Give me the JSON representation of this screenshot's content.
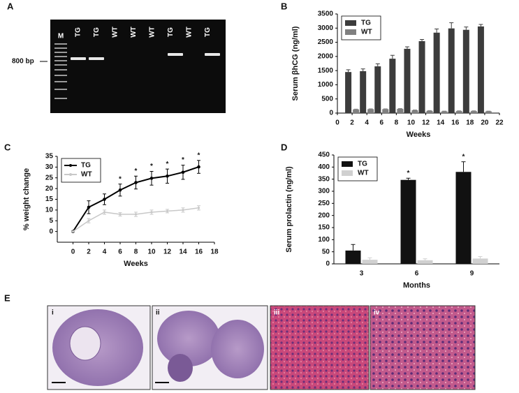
{
  "panel_labels": [
    "A",
    "B",
    "C",
    "D",
    "E"
  ],
  "gel": {
    "marker": "M",
    "lanes": [
      "TG",
      "TG",
      "WT",
      "WT",
      "WT",
      "TG",
      "WT",
      "TG"
    ],
    "size_label": "800 bp"
  },
  "chart_data": [
    {
      "type": "bar",
      "ylabel": "Serum βhCG (ng/ml)",
      "xlabel": "Weeks",
      "x": [
        2,
        4,
        6,
        8,
        10,
        12,
        14,
        16,
        18,
        20
      ],
      "xlim": [
        0,
        22
      ],
      "xticks": [
        0,
        2,
        4,
        6,
        8,
        10,
        12,
        14,
        16,
        18,
        20,
        22
      ],
      "ylim": [
        0,
        3500
      ],
      "yticks": [
        0,
        500,
        1000,
        1500,
        2000,
        2500,
        3000,
        3500
      ],
      "legend": "upper left",
      "series": [
        {
          "name": "TG",
          "color": "#3c3c3c",
          "values": [
            1450,
            1480,
            1650,
            1920,
            2270,
            2540,
            2840,
            2990,
            2940,
            3060
          ],
          "errors": [
            80,
            80,
            90,
            120,
            70,
            60,
            130,
            200,
            100,
            70
          ]
        },
        {
          "name": "WT",
          "color": "#808080",
          "values": [
            130,
            140,
            140,
            150,
            100,
            80,
            60,
            70,
            70,
            60
          ],
          "errors": [
            10,
            10,
            10,
            10,
            10,
            10,
            10,
            10,
            10,
            10
          ]
        }
      ]
    },
    {
      "type": "line",
      "ylabel": "% weight change",
      "xlabel": "Weeks",
      "x": [
        0,
        2,
        4,
        6,
        8,
        10,
        12,
        14,
        16
      ],
      "xlim": [
        -2,
        18
      ],
      "xticks": [
        0,
        2,
        4,
        6,
        8,
        10,
        12,
        14,
        16,
        18
      ],
      "ylim": [
        -5,
        35
      ],
      "yticks": [
        0,
        5,
        10,
        15,
        20,
        25,
        30,
        35
      ],
      "legend": "upper left",
      "series": [
        {
          "name": "TG",
          "color": "#000000",
          "values": [
            0,
            11.3,
            15,
            19.3,
            22.8,
            24.8,
            25.8,
            27.6,
            30.1
          ],
          "errors": [
            0,
            3,
            2.5,
            2.8,
            3,
            3.2,
            3.3,
            3.3,
            3
          ],
          "markers": [
            null,
            null,
            null,
            "*",
            "*",
            "*",
            "*",
            "*",
            "*"
          ]
        },
        {
          "name": "WT",
          "color": "#c8c8c8",
          "values": [
            0,
            5,
            9,
            8,
            8,
            9,
            9.5,
            10,
            11
          ],
          "errors": [
            0,
            1,
            1,
            0.8,
            1,
            1,
            0.8,
            1,
            1
          ]
        }
      ]
    },
    {
      "type": "bar",
      "ylabel": "Serum prolactin (ng/ml)",
      "xlabel": "Months",
      "categories": [
        "3",
        "6",
        "9"
      ],
      "ylim": [
        0,
        450
      ],
      "yticks": [
        0,
        50,
        100,
        150,
        200,
        250,
        300,
        350,
        400,
        450
      ],
      "legend": "upper left",
      "series": [
        {
          "name": "TG",
          "color": "#111111",
          "values": [
            55,
            347,
            380
          ],
          "errors": [
            25,
            7,
            42
          ],
          "markers": [
            null,
            "*",
            "*"
          ]
        },
        {
          "name": "WT",
          "color": "#d0d0d0",
          "values": [
            17,
            15,
            22
          ],
          "errors": [
            8,
            6,
            8
          ]
        }
      ]
    }
  ],
  "histology": {
    "labels": [
      "i",
      "ii",
      "iii",
      "iv"
    ]
  }
}
